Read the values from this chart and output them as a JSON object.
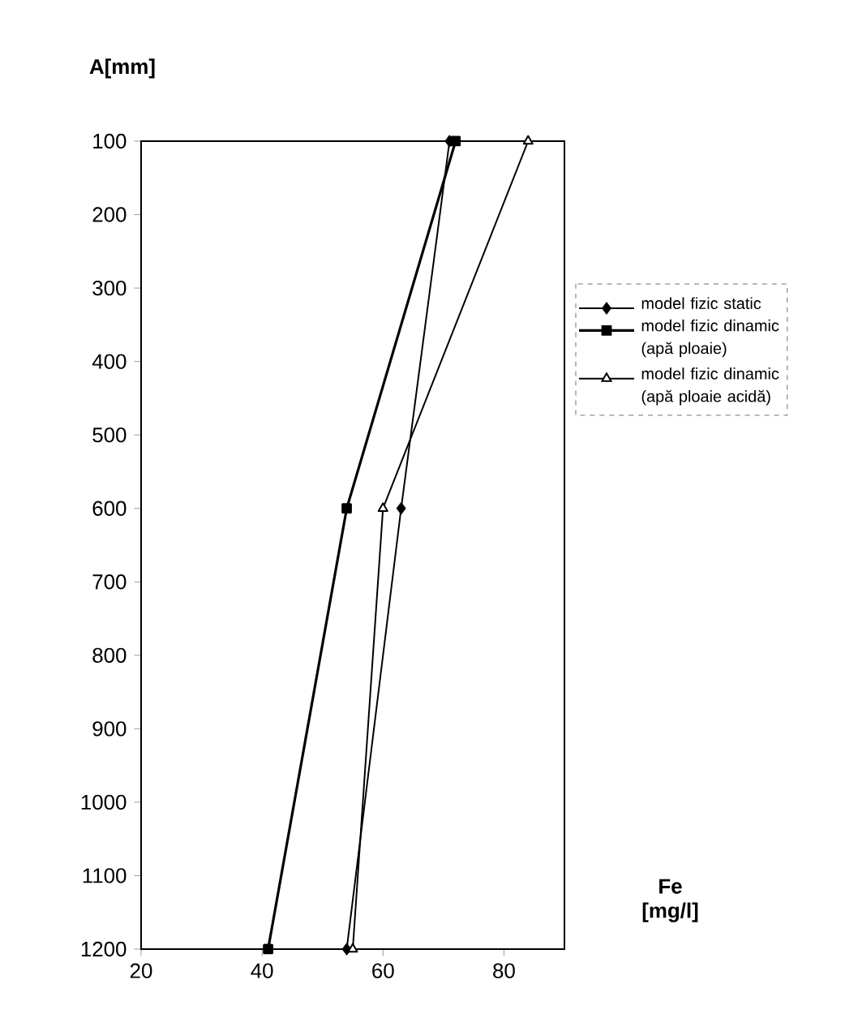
{
  "chart_data": {
    "type": "line",
    "xlabel": "Fe [mg/l]",
    "ylabel": "A[mm]",
    "xlim": [
      20,
      90
    ],
    "xticks": [
      20,
      40,
      60,
      80
    ],
    "ylim": [
      1200,
      100
    ],
    "yticks": [
      100,
      200,
      300,
      400,
      500,
      600,
      700,
      800,
      900,
      1000,
      1100,
      1200
    ],
    "legend": "right",
    "grid": false,
    "line_style": "solid",
    "series": [
      {
        "name": "model fizic static",
        "color": "#000000",
        "marker": "diamond",
        "x": [
          71,
          63,
          54
        ],
        "values": [
          100,
          600,
          1200
        ]
      },
      {
        "name": "model fizic dinamic (apă ploaie)",
        "color": "#000000",
        "marker": "square",
        "x": [
          72,
          54,
          41
        ],
        "values": [
          100,
          600,
          1200
        ]
      },
      {
        "name": "model fizic dinamic (apă ploaie acidă)",
        "color": "#000000",
        "marker": "triangle",
        "x": [
          84,
          60,
          55
        ],
        "values": [
          100,
          600,
          1200
        ]
      }
    ]
  }
}
